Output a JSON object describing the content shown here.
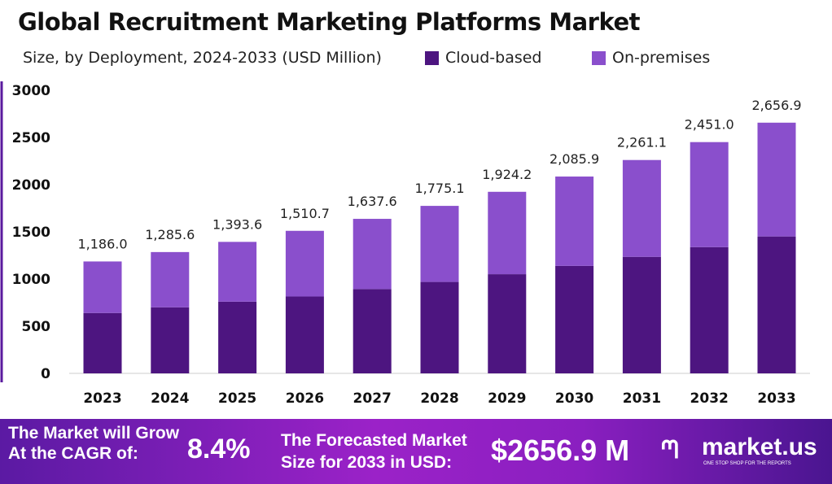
{
  "title": "Global Recruitment Marketing Platforms Market",
  "subtitle": "Size, by Deployment, 2024-2033 (USD Million)",
  "chart_data": {
    "type": "bar",
    "stacked": true,
    "title": "Global Recruitment Marketing Platforms Market",
    "subtitle": "Size, by Deployment, 2024-2033 (USD Million)",
    "categories": [
      "2023",
      "2024",
      "2025",
      "2026",
      "2027",
      "2028",
      "2029",
      "2030",
      "2031",
      "2032",
      "2033"
    ],
    "series": [
      {
        "name": "Cloud-based",
        "color": "#4d1580",
        "values": [
          640,
          700,
          760,
          815,
          894,
          969,
          1051,
          1139,
          1235,
          1338,
          1451
        ]
      },
      {
        "name": "On-premises",
        "color": "#8a4fcc",
        "values": [
          546,
          585.6,
          633.6,
          695.7,
          743.6,
          806.1,
          873.2,
          946.9,
          1026.1,
          1113,
          1205.9
        ]
      }
    ],
    "totals": [
      "1,186.0",
      "1,285.6",
      "1,393.6",
      "1,510.7",
      "1,637.6",
      "1,775.1",
      "1,924.2",
      "2,085.9",
      "2,261.1",
      "2,451.0",
      "2,656.9"
    ],
    "total_values": [
      1186.0,
      1285.6,
      1393.6,
      1510.7,
      1637.6,
      1775.1,
      1924.2,
      2085.9,
      2261.1,
      2451.0,
      2656.9
    ],
    "yticks": [
      "0",
      "500",
      "1000",
      "1500",
      "2000",
      "2500",
      "3000"
    ],
    "ylim": [
      0,
      3000
    ],
    "grid": false,
    "legend_position": "top"
  },
  "banner": {
    "cagr_text_1": "The Market will Grow",
    "cagr_text_2": "At the CAGR of:",
    "cagr_value": "8.4%",
    "forecast_text_1": "The Forecasted Market",
    "forecast_text_2": "Size for 2033 in USD:",
    "forecast_value": "$2656.9 M",
    "logo_text": "market.us",
    "logo_tagline": "ONE STOP SHOP FOR THE REPORTS"
  }
}
